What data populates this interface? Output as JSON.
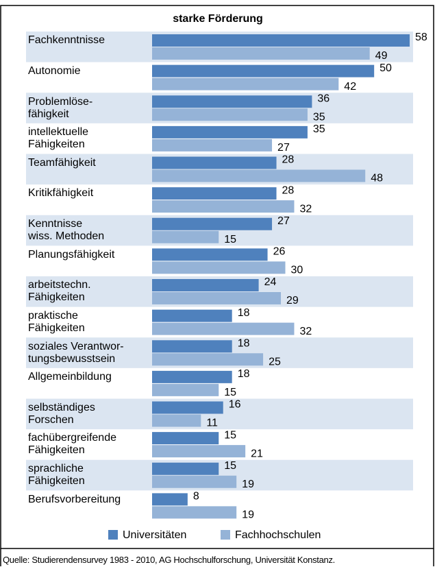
{
  "chart_data": {
    "type": "hbar",
    "title": "starke Förderung",
    "categories": [
      "Fachkenntnisse",
      "Autonomie",
      "Problemlöse-\nfähigkeit",
      "intellektuelle\nFähigkeiten",
      "Teamfähigkeit",
      "Kritikfähigkeit",
      "Kenntnisse\nwiss. Methoden",
      "Planungsfähigkeit",
      "arbeitstechn.\nFähigkeiten",
      "praktische\nFähigkeiten",
      "soziales Verantwor-\ntungsbewusstsein",
      "Allgemeinbildung",
      "selbständiges\nForschen",
      "fachübergreifende\nFähigkeiten",
      "sprachliche\nFähigkeiten",
      "Berufsvorbereitung"
    ],
    "series": [
      {
        "name": "Universitäten",
        "color": "#4f81bd",
        "values": [
          58,
          50,
          36,
          35,
          28,
          28,
          27,
          26,
          24,
          18,
          18,
          18,
          16,
          15,
          15,
          8
        ]
      },
      {
        "name": "Fachhochschulen",
        "color": "#95b3d7",
        "values": [
          49,
          42,
          35,
          27,
          48,
          32,
          15,
          30,
          29,
          32,
          25,
          15,
          11,
          21,
          19,
          19
        ]
      }
    ],
    "xlim": [
      0,
      60
    ],
    "source": "Quelle: Studierendensurvey 1983 - 2010, AG Hochschulforschung, Universität Konstanz."
  }
}
